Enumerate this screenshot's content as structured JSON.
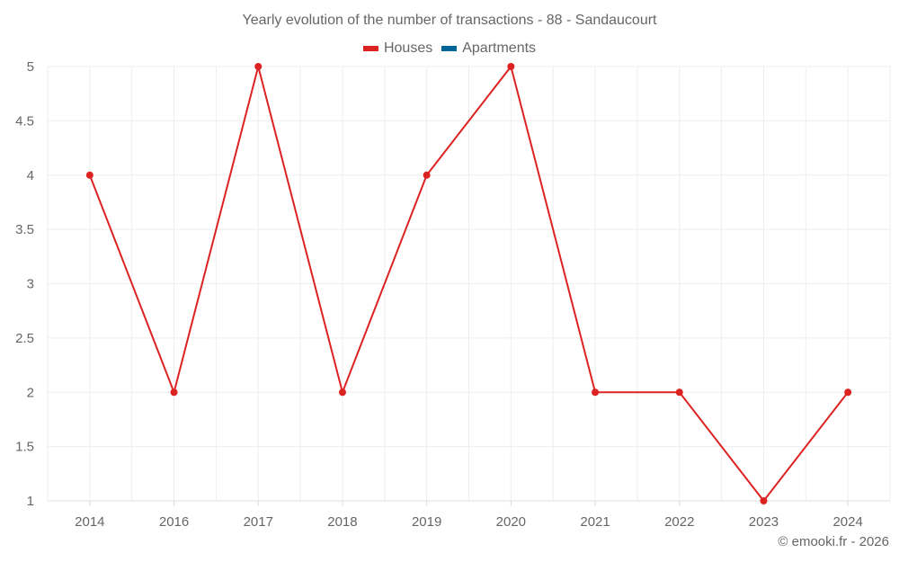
{
  "title": "Yearly evolution of the number of transactions - 88 - Sandaucourt",
  "legend": [
    {
      "label": "Houses",
      "color": "#dd2222"
    },
    {
      "label": "Apartments",
      "color": "#006699"
    }
  ],
  "credit": "© emooki.fr - 2026",
  "colors": {
    "houses": "#dd2222",
    "apartments": "#006699",
    "grid": "#eeeeee",
    "axis": "#dddddd",
    "text": "#666666"
  },
  "chart_data": {
    "type": "line",
    "title": "Yearly evolution of the number of transactions - 88 - Sandaucourt",
    "xlabel": "",
    "ylabel": "",
    "categories": [
      "2014",
      "2016",
      "2017",
      "2018",
      "2019",
      "2020",
      "2021",
      "2022",
      "2023",
      "2024"
    ],
    "series": [
      {
        "name": "Houses",
        "color": "#dd2222",
        "values": [
          4,
          2,
          5,
          2,
          4,
          5,
          2,
          2,
          1,
          2
        ]
      },
      {
        "name": "Apartments",
        "color": "#006699",
        "values": []
      }
    ],
    "yticks": [
      "1",
      "1.5",
      "2",
      "2.5",
      "3",
      "3.5",
      "4",
      "4.5",
      "5"
    ],
    "ylim": [
      1,
      5
    ],
    "grid": true,
    "legend_position": "top"
  }
}
